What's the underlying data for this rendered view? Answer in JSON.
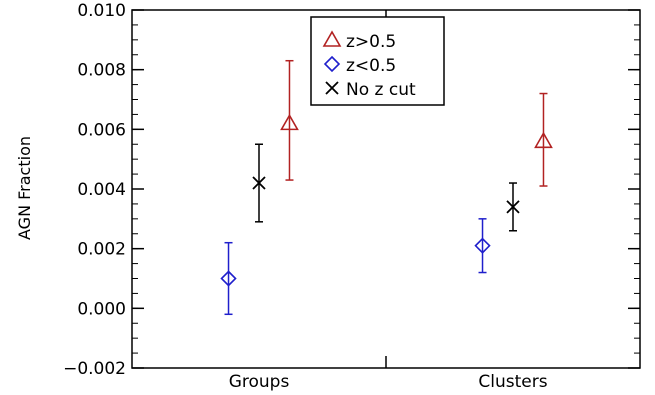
{
  "chart_data": {
    "type": "scatter",
    "title": "",
    "xlabel": "",
    "ylabel": "AGN Fraction",
    "categories": [
      "Groups",
      "Clusters"
    ],
    "ylim": [
      -0.002,
      0.01
    ],
    "yticks": [
      "−0.002",
      "0.000",
      "0.002",
      "0.004",
      "0.006",
      "0.008",
      "0.010"
    ],
    "ytick_values": [
      -0.002,
      0.0,
      0.002,
      0.004,
      0.006,
      0.008,
      0.01
    ],
    "legend_position": "top-center",
    "grid": false,
    "series": [
      {
        "name": "z>0.5",
        "marker": "triangle",
        "color": "#b22222",
        "offset": 0.12,
        "values": [
          0.0062,
          0.0056
        ],
        "err_low": [
          0.0043,
          0.0041
        ],
        "err_high": [
          0.0083,
          0.0072
        ]
      },
      {
        "name": "z<0.5",
        "marker": "diamond",
        "color": "#1f1fcc",
        "offset": -0.12,
        "values": [
          0.001,
          0.0021
        ],
        "err_low": [
          -0.0002,
          0.0012
        ],
        "err_high": [
          0.0022,
          0.003
        ]
      },
      {
        "name": "No z cut",
        "marker": "x",
        "color": "#000000",
        "offset": 0.0,
        "values": [
          0.0042,
          0.0034
        ],
        "err_low": [
          0.0029,
          0.0026
        ],
        "err_high": [
          0.0055,
          0.0042
        ]
      }
    ]
  }
}
